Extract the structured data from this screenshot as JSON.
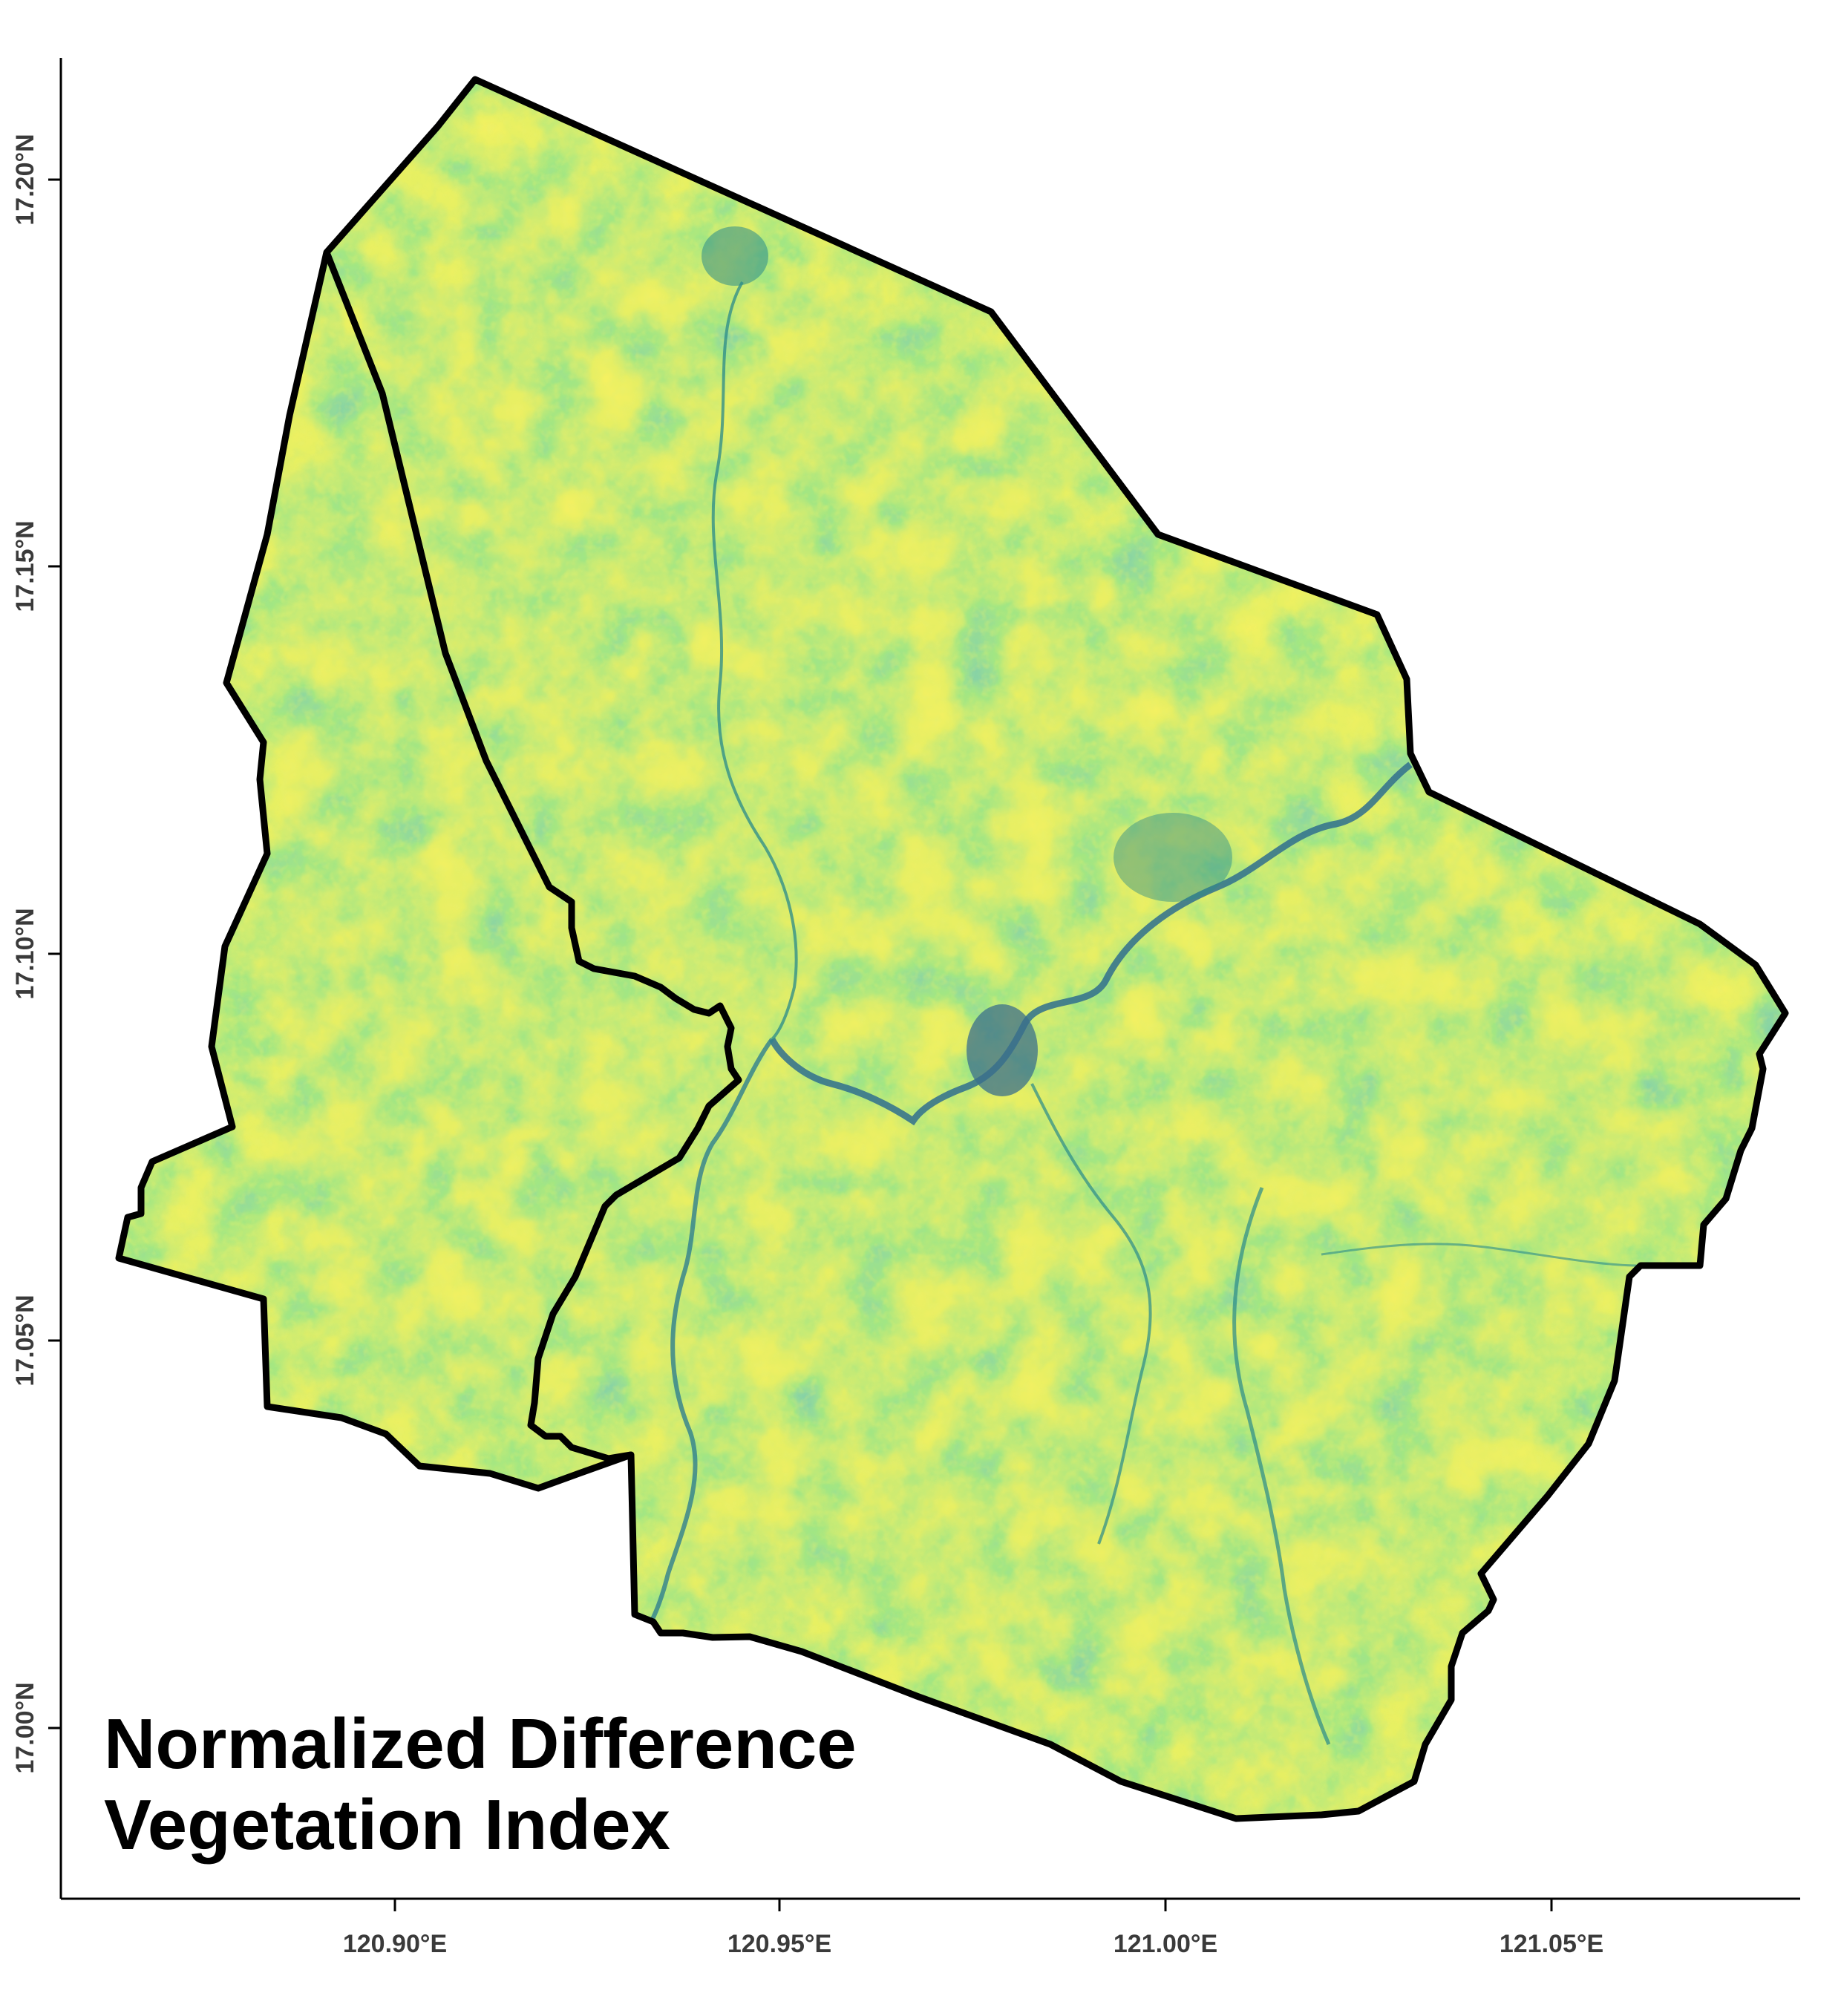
{
  "title": {
    "line1": "Normalized Difference",
    "line2": "Vegetation Index"
  },
  "axes": {
    "x_ticks": [
      "120.90°E",
      "120.95°E",
      "121.00°E",
      "121.05°E"
    ],
    "y_ticks": [
      "17.20°N",
      "17.15°N",
      "17.10°N",
      "17.05°N",
      "17.00°N"
    ],
    "x_range_deg": [
      120.8585,
      121.0822
    ],
    "y_range_deg": [
      16.978,
      17.215
    ]
  },
  "colors": {
    "ndvi_high": "#f2e626",
    "ndvi_mid_high": "#c8e02a",
    "ndvi_mid": "#7fcf4a",
    "ndvi_low": "#2a9a8a",
    "ndvi_very_low": "#3b528b",
    "boundary": "#000000"
  },
  "colormap": "viridis"
}
